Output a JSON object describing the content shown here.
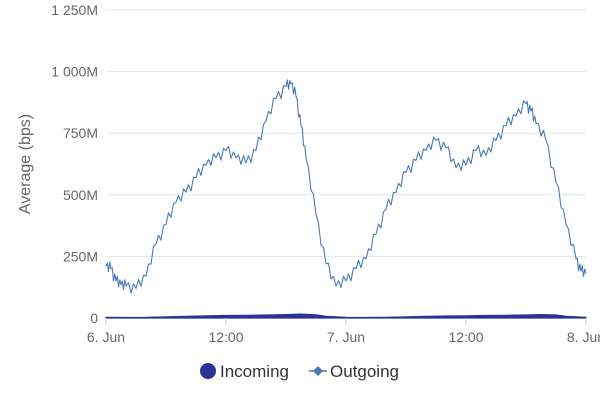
{
  "chart_data": {
    "type": "line",
    "title": "",
    "xlabel": "",
    "ylabel": "Average (bps)",
    "x_ticks": [
      {
        "label": "6. Jun",
        "hours": 0
      },
      {
        "label": "12:00",
        "hours": 12
      },
      {
        "label": "7. Jun",
        "hours": 24
      },
      {
        "label": "12:00",
        "hours": 36
      },
      {
        "label": "8. Jun",
        "hours": 48
      }
    ],
    "x_range_hours": [
      0,
      48
    ],
    "y_ticks": [
      {
        "label": "0",
        "value": 0
      },
      {
        "label": "250M",
        "value": 250000000
      },
      {
        "label": "500M",
        "value": 500000000
      },
      {
        "label": "750M",
        "value": 750000000
      },
      {
        "label": "1 000M",
        "value": 1000000000
      },
      {
        "label": "1 250M",
        "value": 1250000000
      }
    ],
    "ylim": [
      0,
      1250000000
    ],
    "grid": true,
    "legend_position": "bottom-center",
    "series": [
      {
        "name": "Incoming",
        "type": "area",
        "color": "#283593",
        "marker": "circle",
        "x_hours": [
          0,
          2,
          4,
          6,
          8,
          10,
          12,
          14,
          16,
          18,
          19.5,
          21,
          22,
          24,
          26,
          28,
          30,
          32,
          34,
          36,
          38,
          40,
          42,
          43.5,
          45,
          46,
          48
        ],
        "values": [
          3000000,
          2000000,
          2500000,
          5000000,
          7000000,
          9000000,
          10000000,
          11000000,
          12000000,
          14000000,
          16000000,
          13000000,
          7000000,
          3000000,
          2000000,
          3000000,
          5000000,
          7000000,
          8000000,
          9000000,
          10000000,
          11000000,
          12000000,
          14000000,
          12000000,
          7000000,
          3000000
        ]
      },
      {
        "name": "Outgoing",
        "type": "line",
        "color": "#4a7ab5",
        "marker": "diamond",
        "x_hours": [
          0,
          0.5,
          1,
          1.5,
          2,
          3,
          4,
          5,
          6,
          7,
          8,
          9,
          10,
          11,
          12,
          13,
          14,
          15,
          16,
          17,
          18,
          18.5,
          19,
          19.5,
          20,
          21,
          22,
          23,
          24,
          25,
          26,
          27,
          28,
          29,
          30,
          31,
          32,
          33,
          34,
          35,
          36,
          37,
          38,
          39,
          40,
          41,
          42,
          42.5,
          43,
          44,
          45,
          46,
          47,
          47.5,
          48
        ],
        "values": [
          210000000,
          200000000,
          150000000,
          135000000,
          130000000,
          120000000,
          170000000,
          300000000,
          380000000,
          470000000,
          510000000,
          570000000,
          620000000,
          650000000,
          680000000,
          650000000,
          630000000,
          680000000,
          800000000,
          890000000,
          940000000,
          950000000,
          900000000,
          780000000,
          650000000,
          420000000,
          220000000,
          130000000,
          150000000,
          200000000,
          240000000,
          340000000,
          440000000,
          510000000,
          590000000,
          640000000,
          680000000,
          720000000,
          690000000,
          610000000,
          620000000,
          680000000,
          660000000,
          720000000,
          780000000,
          820000000,
          870000000,
          840000000,
          790000000,
          720000000,
          550000000,
          380000000,
          240000000,
          190000000,
          180000000
        ]
      }
    ]
  }
}
